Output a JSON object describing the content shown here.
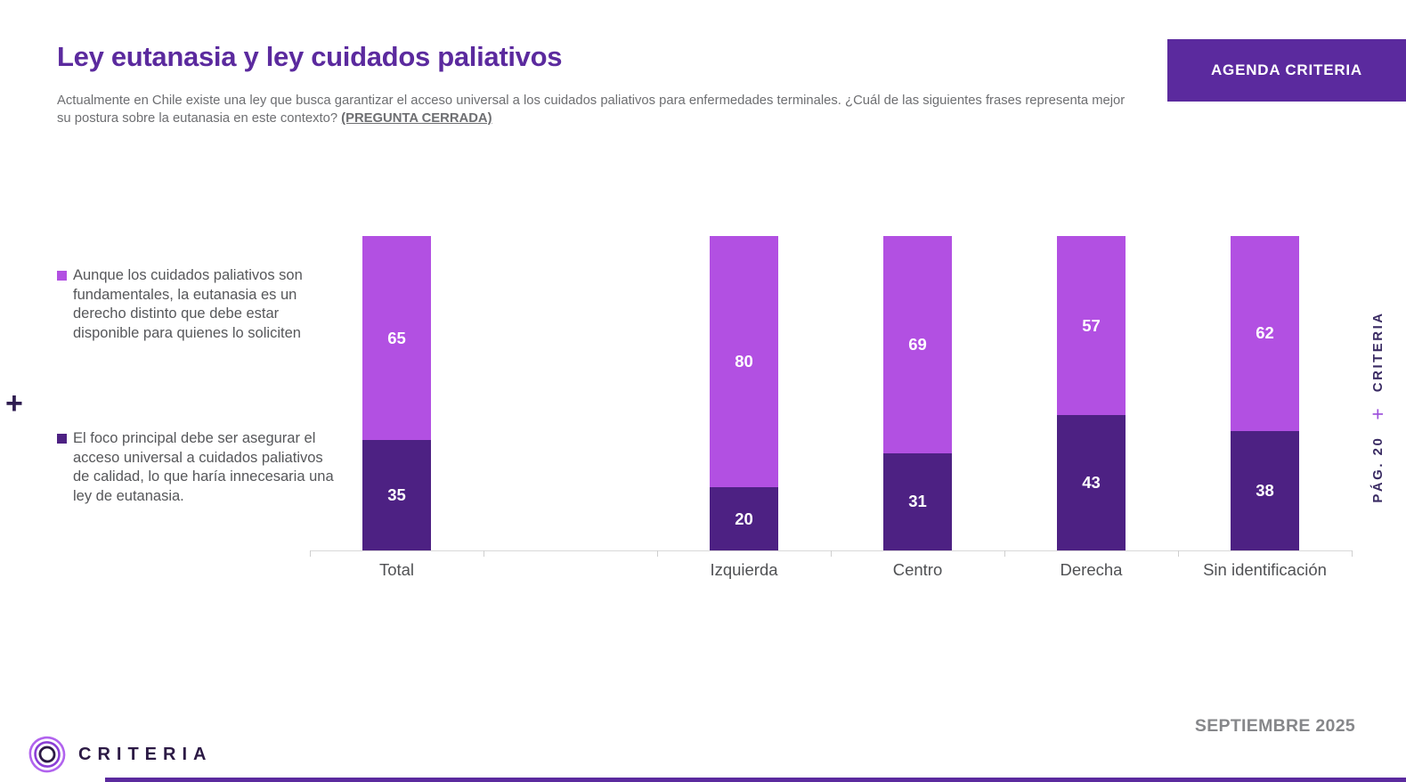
{
  "header": {
    "title": "Ley eutanasia y ley cuidados paliativos",
    "subtitle_main": "Actualmente en Chile existe una ley que busca garantizar el acceso universal a los cuidados paliativos para enfermedades terminales. ¿Cuál de las siguientes frases representa mejor su postura sobre la eutanasia en este contexto? ",
    "subtitle_tag": "(PREGUNTA CERRADA)",
    "badge_label": "AGENDA CRITERIA"
  },
  "decorations": {
    "plus_left": "+"
  },
  "legend": {
    "items": [
      {
        "label": "Aunque los cuidados paliativos son fundamentales, la eutanasia es un derecho distinto que debe estar disponible para quienes lo soliciten",
        "color": "#b250e2"
      },
      {
        "label": "El foco principal debe ser asegurar el acceso universal a cuidados paliativos de calidad, lo que haría innecesaria una ley de eutanasia.",
        "color": "#4d2183"
      }
    ]
  },
  "sidebar_vertical": {
    "page_label": "PÁG. 20",
    "plus": "+",
    "brand": "CRITERIA"
  },
  "footer": {
    "logo_text": "CRITERIA",
    "date": "SEPTIEMBRE 2025"
  },
  "chart_data": {
    "type": "bar",
    "stacked": true,
    "title": "Ley eutanasia y ley cuidados paliativos",
    "xlabel": "",
    "ylabel": "",
    "ylim": [
      0,
      100
    ],
    "grid": false,
    "legend_position": "left",
    "categories": [
      "Total",
      "Izquierda",
      "Centro",
      "Derecha",
      "Sin identificación"
    ],
    "series": [
      {
        "name": "Aunque los cuidados paliativos son fundamentales, la eutanasia es un derecho distinto que debe estar disponible para quienes lo soliciten",
        "position": "top",
        "color": "#b250e2",
        "values": [
          65,
          80,
          69,
          57,
          62
        ]
      },
      {
        "name": "El foco principal debe ser asegurar el acceso universal a cuidados paliativos de calidad, lo que haría innecesaria una ley de eutanasia.",
        "position": "bottom",
        "color": "#4d2183",
        "values": [
          35,
          20,
          31,
          43,
          38
        ]
      }
    ],
    "value_labels": {
      "color": "#ffffff",
      "placement": "segment-center"
    },
    "layout": {
      "slot_count": 6,
      "category_slots": [
        0,
        2,
        3,
        4,
        5
      ],
      "empty_slot_after": "Total"
    }
  }
}
